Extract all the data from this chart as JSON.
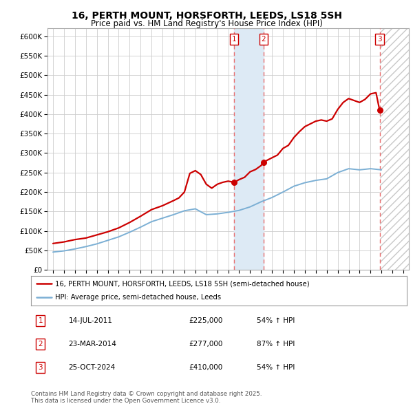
{
  "title": "16, PERTH MOUNT, HORSFORTH, LEEDS, LS18 5SH",
  "subtitle": "Price paid vs. HM Land Registry's House Price Index (HPI)",
  "title_fontsize": 10,
  "subtitle_fontsize": 8.5,
  "bg_color": "#ffffff",
  "plot_bg_color": "#ffffff",
  "grid_color": "#cccccc",
  "xmin": 1994.5,
  "xmax": 2027.5,
  "ymin": 0,
  "ymax": 620000,
  "yticks": [
    0,
    50000,
    100000,
    150000,
    200000,
    250000,
    300000,
    350000,
    400000,
    450000,
    500000,
    550000,
    600000
  ],
  "xticks": [
    1995,
    1996,
    1997,
    1998,
    1999,
    2000,
    2001,
    2002,
    2003,
    2004,
    2005,
    2006,
    2007,
    2008,
    2009,
    2010,
    2011,
    2012,
    2013,
    2014,
    2015,
    2016,
    2017,
    2018,
    2019,
    2020,
    2021,
    2022,
    2023,
    2024,
    2025,
    2026,
    2027
  ],
  "red_line_color": "#cc0000",
  "blue_line_color": "#7bafd4",
  "vline_color": "#e87070",
  "sale_box_color": "#cc0000",
  "highlight_box_color": "#ddeaf5",
  "hatch_color": "#c8c8c8",
  "sales": [
    {
      "num": 1,
      "year": 2011.54,
      "price": 225000,
      "label": "14-JUL-2011",
      "pct": "54%",
      "dir": "↑"
    },
    {
      "num": 2,
      "year": 2014.23,
      "price": 277000,
      "label": "23-MAR-2014",
      "pct": "87%",
      "dir": "↑"
    },
    {
      "num": 3,
      "year": 2024.83,
      "price": 410000,
      "label": "25-OCT-2024",
      "pct": "54%",
      "dir": "↑"
    }
  ],
  "legend_entries": [
    "16, PERTH MOUNT, HORSFORTH, LEEDS, LS18 5SH (semi-detached house)",
    "HPI: Average price, semi-detached house, Leeds"
  ],
  "footnote": "Contains HM Land Registry data © Crown copyright and database right 2025.\nThis data is licensed under the Open Government Licence v3.0.",
  "red_x": [
    1995,
    1996,
    1997,
    1998,
    1999,
    2000,
    2001,
    2002,
    2003,
    2004,
    2005,
    2006,
    2006.5,
    2007,
    2007.5,
    2008,
    2008.5,
    2009,
    2009.5,
    2010,
    2010.5,
    2011,
    2011.54,
    2012,
    2012.5,
    2013,
    2013.5,
    2014,
    2014.23,
    2015,
    2015.5,
    2016,
    2016.5,
    2017,
    2017.5,
    2018,
    2018.5,
    2019,
    2019.5,
    2020,
    2020.5,
    2021,
    2021.5,
    2022,
    2022.5,
    2023,
    2023.5,
    2024,
    2024.5,
    2024.83,
    2025
  ],
  "red_y": [
    68000,
    72000,
    78000,
    82000,
    90000,
    98000,
    108000,
    122000,
    138000,
    155000,
    165000,
    178000,
    185000,
    200000,
    248000,
    255000,
    245000,
    220000,
    210000,
    220000,
    225000,
    228000,
    225000,
    232000,
    238000,
    252000,
    258000,
    268000,
    277000,
    288000,
    295000,
    312000,
    320000,
    340000,
    355000,
    368000,
    375000,
    382000,
    385000,
    382000,
    388000,
    412000,
    430000,
    440000,
    435000,
    430000,
    438000,
    452000,
    455000,
    410000,
    412000
  ],
  "blue_x": [
    1995,
    1996,
    1997,
    1998,
    1999,
    2000,
    2001,
    2002,
    2003,
    2004,
    2005,
    2006,
    2007,
    2008,
    2009,
    2010,
    2011,
    2012,
    2013,
    2014,
    2015,
    2016,
    2017,
    2018,
    2019,
    2020,
    2021,
    2022,
    2023,
    2024,
    2025
  ],
  "blue_y": [
    46000,
    49000,
    54000,
    60000,
    67000,
    76000,
    85000,
    97000,
    110000,
    124000,
    133000,
    142000,
    152000,
    157000,
    142000,
    144000,
    148000,
    153000,
    162000,
    175000,
    186000,
    200000,
    215000,
    224000,
    230000,
    234000,
    250000,
    260000,
    257000,
    260000,
    257000
  ]
}
